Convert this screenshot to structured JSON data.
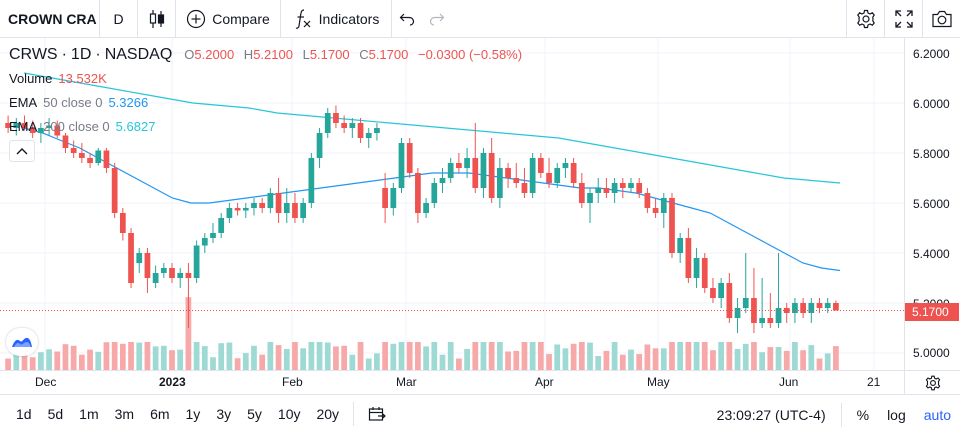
{
  "toolbar": {
    "symbol": "CROWN CRA",
    "interval": "D",
    "compare_label": "Compare",
    "indicators_label": "Indicators"
  },
  "legend": {
    "symbol": "CRWS",
    "interval": "1D",
    "exchange": "NASDAQ",
    "open_label": "O",
    "open": "5.2000",
    "high_label": "H",
    "high": "5.2100",
    "low_label": "L",
    "low": "5.1700",
    "close_label": "C",
    "close": "5.1700",
    "change": "−0.0300 (−0.58%)",
    "volume_label": "Volume",
    "volume": "13.532K",
    "ema50_label": "EMA",
    "ema50_params": "50 close 0",
    "ema50_value": "5.3266",
    "ema200_label": "EMA",
    "ema200_params": "200 close 0",
    "ema200_value": "5.6827"
  },
  "price_axis": {
    "ticks": [
      "6.2000",
      "6.0000",
      "5.8000",
      "5.6000",
      "5.4000",
      "5.2000",
      "5.0000"
    ],
    "current_price": "5.1700"
  },
  "time_axis": {
    "ticks": [
      {
        "label": "Dec",
        "year": false
      },
      {
        "label": "2023",
        "year": true
      },
      {
        "label": "Feb",
        "year": false
      },
      {
        "label": "Mar",
        "year": false
      },
      {
        "label": "Apr",
        "year": false
      },
      {
        "label": "May",
        "year": false
      },
      {
        "label": "Jun",
        "year": false
      },
      {
        "label": "21",
        "year": false
      }
    ]
  },
  "bottombar": {
    "ranges": [
      "1d",
      "5d",
      "1m",
      "3m",
      "6m",
      "1y",
      "3y",
      "5y",
      "10y",
      "20y"
    ],
    "clock": "23:09:27 (UTC-4)",
    "percent_label": "%",
    "log_label": "log",
    "auto_label": "auto"
  },
  "colors": {
    "up": "#26a69a",
    "down": "#ef5350",
    "ema50": "#2196f3",
    "ema200": "#26c6da",
    "accent": "#2962ff"
  },
  "icons": [
    "candles-icon",
    "plus-circle-icon",
    "fx-icon",
    "undo-icon",
    "redo-icon",
    "gear-icon",
    "fullscreen-icon",
    "camera-icon",
    "chevron-up-icon",
    "settings-gear-icon",
    "calendar-range-icon",
    "tradingview-logo-icon"
  ],
  "chart_data": {
    "type": "candlestick",
    "ylim": [
      4.97,
      6.22
    ],
    "yticks": [
      5.0,
      5.2,
      5.4,
      5.6,
      5.8,
      6.0,
      6.2
    ],
    "candles": [
      [
        5.92,
        5.95,
        5.88,
        5.9
      ],
      [
        5.9,
        5.94,
        5.87,
        5.92
      ],
      [
        5.92,
        5.95,
        5.89,
        5.9
      ],
      [
        5.9,
        5.93,
        5.86,
        5.88
      ],
      [
        5.88,
        5.92,
        5.84,
        5.9
      ],
      [
        5.9,
        5.94,
        5.87,
        5.91
      ],
      [
        5.91,
        5.93,
        5.86,
        5.87
      ],
      [
        5.87,
        5.88,
        5.8,
        5.82
      ],
      [
        5.82,
        5.85,
        5.78,
        5.8
      ],
      [
        5.8,
        5.84,
        5.76,
        5.78
      ],
      [
        5.78,
        5.8,
        5.74,
        5.76
      ],
      [
        5.76,
        5.82,
        5.75,
        5.81
      ],
      [
        5.81,
        5.82,
        5.72,
        5.74
      ],
      [
        5.74,
        5.76,
        5.54,
        5.56
      ],
      [
        5.56,
        5.58,
        5.45,
        5.48
      ],
      [
        5.48,
        5.5,
        5.26,
        5.28
      ],
      [
        5.36,
        5.42,
        5.32,
        5.4
      ],
      [
        5.4,
        5.42,
        5.24,
        5.3
      ],
      [
        5.28,
        5.35,
        5.26,
        5.32
      ],
      [
        5.32,
        5.36,
        5.3,
        5.34
      ],
      [
        5.34,
        5.36,
        5.28,
        5.3
      ],
      [
        5.3,
        5.34,
        5.26,
        5.32
      ],
      [
        5.32,
        5.36,
        5.1,
        5.3
      ],
      [
        5.3,
        5.45,
        5.28,
        5.43
      ],
      [
        5.43,
        5.48,
        5.4,
        5.46
      ],
      [
        5.46,
        5.52,
        5.44,
        5.48
      ],
      [
        5.48,
        5.56,
        5.46,
        5.54
      ],
      [
        5.54,
        5.6,
        5.52,
        5.58
      ],
      [
        5.58,
        5.6,
        5.55,
        5.57
      ],
      [
        5.57,
        5.6,
        5.54,
        5.58
      ],
      [
        5.58,
        5.62,
        5.55,
        5.6
      ],
      [
        5.6,
        5.62,
        5.56,
        5.58
      ],
      [
        5.58,
        5.66,
        5.56,
        5.64
      ],
      [
        5.64,
        5.7,
        5.52,
        5.56
      ],
      [
        5.56,
        5.66,
        5.52,
        5.6
      ],
      [
        5.6,
        5.64,
        5.52,
        5.54
      ],
      [
        5.54,
        5.62,
        5.52,
        5.6
      ],
      [
        5.6,
        5.8,
        5.58,
        5.78
      ],
      [
        5.78,
        5.9,
        5.74,
        5.88
      ],
      [
        5.88,
        5.98,
        5.86,
        5.96
      ],
      [
        5.96,
        5.99,
        5.9,
        5.92
      ],
      [
        5.92,
        5.95,
        5.88,
        5.9
      ],
      [
        5.9,
        5.94,
        5.86,
        5.92
      ],
      [
        5.92,
        5.94,
        5.84,
        5.86
      ],
      [
        5.86,
        5.9,
        5.82,
        5.88
      ],
      [
        5.88,
        5.92,
        5.85,
        5.9
      ],
      [
        5.66,
        5.72,
        5.52,
        5.58
      ],
      [
        5.58,
        5.68,
        5.55,
        5.66
      ],
      [
        5.66,
        5.86,
        5.64,
        5.84
      ],
      [
        5.84,
        5.86,
        5.7,
        5.72
      ],
      [
        5.72,
        5.74,
        5.52,
        5.56
      ],
      [
        5.56,
        5.62,
        5.54,
        5.6
      ],
      [
        5.6,
        5.7,
        5.58,
        5.68
      ],
      [
        5.68,
        5.74,
        5.64,
        5.7
      ],
      [
        5.7,
        5.78,
        5.68,
        5.76
      ],
      [
        5.76,
        5.8,
        5.72,
        5.74
      ],
      [
        5.74,
        5.82,
        5.7,
        5.78
      ],
      [
        5.78,
        5.92,
        5.64,
        5.66
      ],
      [
        5.66,
        5.82,
        5.62,
        5.8
      ],
      [
        5.8,
        5.86,
        5.6,
        5.62
      ],
      [
        5.62,
        5.78,
        5.58,
        5.74
      ],
      [
        5.74,
        5.76,
        5.66,
        5.7
      ],
      [
        5.7,
        5.76,
        5.66,
        5.68
      ],
      [
        5.68,
        5.74,
        5.62,
        5.64
      ],
      [
        5.64,
        5.8,
        5.62,
        5.78
      ],
      [
        5.78,
        5.8,
        5.7,
        5.72
      ],
      [
        5.72,
        5.78,
        5.66,
        5.68
      ],
      [
        5.68,
        5.76,
        5.66,
        5.74
      ],
      [
        5.74,
        5.78,
        5.7,
        5.76
      ],
      [
        5.76,
        5.78,
        5.66,
        5.68
      ],
      [
        5.68,
        5.72,
        5.58,
        5.6
      ],
      [
        5.6,
        5.66,
        5.52,
        5.64
      ],
      [
        5.64,
        5.7,
        5.6,
        5.66
      ],
      [
        5.66,
        5.7,
        5.62,
        5.64
      ],
      [
        5.64,
        5.7,
        5.6,
        5.68
      ],
      [
        5.68,
        5.7,
        5.62,
        5.66
      ],
      [
        5.66,
        5.7,
        5.64,
        5.68
      ],
      [
        5.68,
        5.7,
        5.62,
        5.64
      ],
      [
        5.64,
        5.66,
        5.56,
        5.58
      ],
      [
        5.58,
        5.62,
        5.54,
        5.56
      ],
      [
        5.56,
        5.64,
        5.5,
        5.62
      ],
      [
        5.62,
        5.64,
        5.38,
        5.4
      ],
      [
        5.4,
        5.48,
        5.36,
        5.46
      ],
      [
        5.46,
        5.5,
        5.28,
        5.3
      ],
      [
        5.3,
        5.42,
        5.26,
        5.38
      ],
      [
        5.38,
        5.4,
        5.24,
        5.26
      ],
      [
        5.26,
        5.3,
        5.2,
        5.22
      ],
      [
        5.22,
        5.3,
        5.18,
        5.28
      ],
      [
        5.28,
        5.32,
        5.12,
        5.14
      ],
      [
        5.14,
        5.22,
        5.08,
        5.18
      ],
      [
        5.18,
        5.4,
        5.16,
        5.22
      ],
      [
        5.22,
        5.34,
        5.08,
        5.12
      ],
      [
        5.12,
        5.3,
        5.1,
        5.14
      ],
      [
        5.14,
        5.24,
        5.1,
        5.12
      ],
      [
        5.12,
        5.4,
        5.1,
        5.18
      ],
      [
        5.18,
        5.2,
        5.12,
        5.16
      ],
      [
        5.16,
        5.22,
        5.12,
        5.2
      ],
      [
        5.2,
        5.22,
        5.14,
        5.16
      ],
      [
        5.16,
        5.22,
        5.12,
        5.2
      ],
      [
        5.2,
        5.22,
        5.16,
        5.18
      ],
      [
        5.18,
        5.22,
        5.16,
        5.2
      ],
      [
        5.2,
        5.21,
        5.17,
        5.17
      ]
    ],
    "volume_ylim": [
      0,
      120000
    ],
    "ema50": [
      5.9,
      5.88,
      5.85,
      5.82,
      5.78,
      5.74,
      5.7,
      5.66,
      5.62,
      5.6,
      5.6,
      5.61,
      5.62,
      5.63,
      5.64,
      5.65,
      5.66,
      5.67,
      5.68,
      5.69,
      5.7,
      5.71,
      5.72,
      5.72,
      5.72,
      5.71,
      5.7,
      5.69,
      5.68,
      5.67,
      5.66,
      5.66,
      5.65,
      5.64,
      5.62,
      5.6,
      5.58,
      5.56,
      5.52,
      5.48,
      5.44,
      5.4,
      5.36,
      5.34,
      5.33
    ],
    "ema200": [
      6.12,
      6.1,
      6.08,
      6.06,
      6.04,
      6.02,
      6.0,
      5.99,
      5.98,
      5.96,
      5.95,
      5.94,
      5.93,
      5.92,
      5.91,
      5.9,
      5.89,
      5.88,
      5.87,
      5.86,
      5.84,
      5.82,
      5.8,
      5.78,
      5.76,
      5.74,
      5.72,
      5.7,
      5.69,
      5.68
    ]
  }
}
